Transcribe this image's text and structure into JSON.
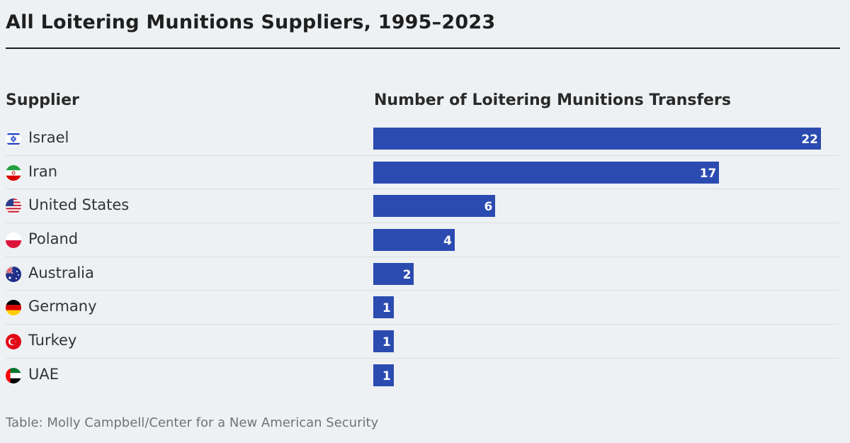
{
  "title": "All Loitering Munitions Suppliers, 1995–2023",
  "source": "Table: Molly Campbell/Center for a New American Security",
  "chart_data": {
    "type": "bar",
    "orientation": "horizontal",
    "column_headers": [
      "Supplier",
      "Number of Loitering Munitions Transfers"
    ],
    "categories": [
      "Israel",
      "Iran",
      "United States",
      "Poland",
      "Australia",
      "Germany",
      "Turkey",
      "UAE"
    ],
    "values": [
      22,
      17,
      6,
      4,
      2,
      1,
      1,
      1
    ],
    "flags": [
      "israel-flag-icon",
      "iran-flag-icon",
      "usa-flag-icon",
      "poland-flag-icon",
      "australia-flag-icon",
      "germany-flag-icon",
      "turkey-flag-icon",
      "uae-flag-icon"
    ],
    "xlim": [
      0,
      22
    ],
    "bar_color": "#2b4bb0",
    "data_labels": "inside-end"
  }
}
